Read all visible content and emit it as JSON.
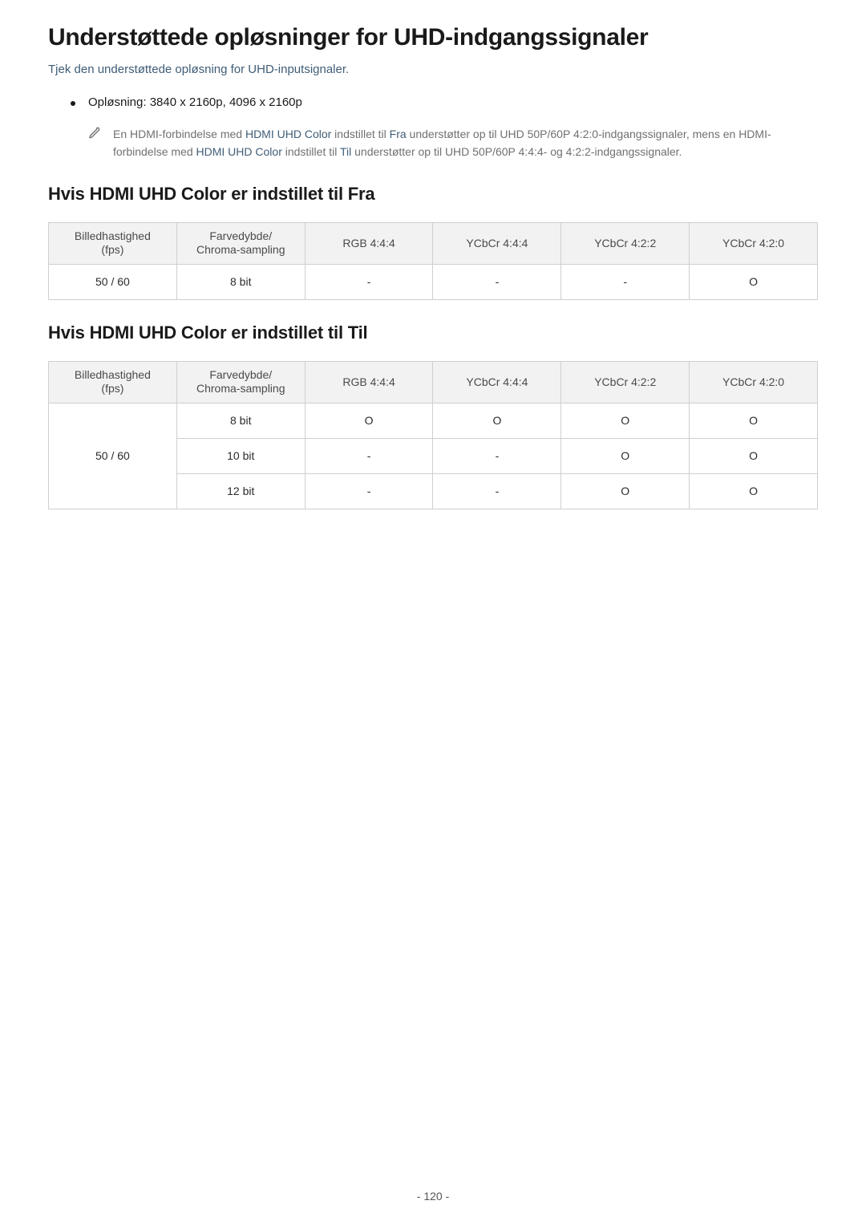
{
  "title": "Understøttede opløsninger for UHD-indgangssignaler",
  "subtitle": "Tjek den understøttede opløsning for UHD-inputsignaler.",
  "bullet": "Opløsning: 3840 x 2160p, 4096 x 2160p",
  "note": {
    "p1a": "En HDMI-forbindelse med ",
    "p1_link1": "HDMI UHD Color",
    "p1b": " indstillet til ",
    "p1_link2": "Fra",
    "p1c": " understøtter op til UHD 50P/60P 4:2:0-indgangssignaler, mens en HDMI-forbindelse med ",
    "p1_link3": "HDMI UHD Color",
    "p1d": " indstillet til ",
    "p1_link4": "Til",
    "p1e": " understøtter op til UHD 50P/60P 4:4:4- og 4:2:2-indgangssignaler."
  },
  "section1": {
    "title": "Hvis HDMI UHD Color er indstillet til Fra",
    "columns": [
      "Billedhastighed\n(fps)",
      "Farvedybde/\nChroma-sampling",
      "RGB 4:4:4",
      "YCbCr 4:4:4",
      "YCbCr 4:2:2",
      "YCbCr 4:2:0"
    ],
    "rows": [
      [
        "50 / 60",
        "8 bit",
        "-",
        "-",
        "-",
        "O"
      ]
    ]
  },
  "section2": {
    "title": "Hvis HDMI UHD Color er indstillet til Til",
    "columns": [
      "Billedhastighed\n(fps)",
      "Farvedybde/\nChroma-sampling",
      "RGB 4:4:4",
      "YCbCr 4:4:4",
      "YCbCr 4:2:2",
      "YCbCr 4:2:0"
    ],
    "rowgroup_label": "50 / 60",
    "subrows": [
      [
        "8 bit",
        "O",
        "O",
        "O",
        "O"
      ],
      [
        "10 bit",
        "-",
        "-",
        "O",
        "O"
      ],
      [
        "12 bit",
        "-",
        "-",
        "O",
        "O"
      ]
    ]
  },
  "page_number": "- 120 -",
  "colors": {
    "accent": "#3f5d77",
    "header_bg": "#f2f2f2",
    "border": "#cfcfcf",
    "text": "#2b2b2b",
    "muted": "#707070"
  }
}
